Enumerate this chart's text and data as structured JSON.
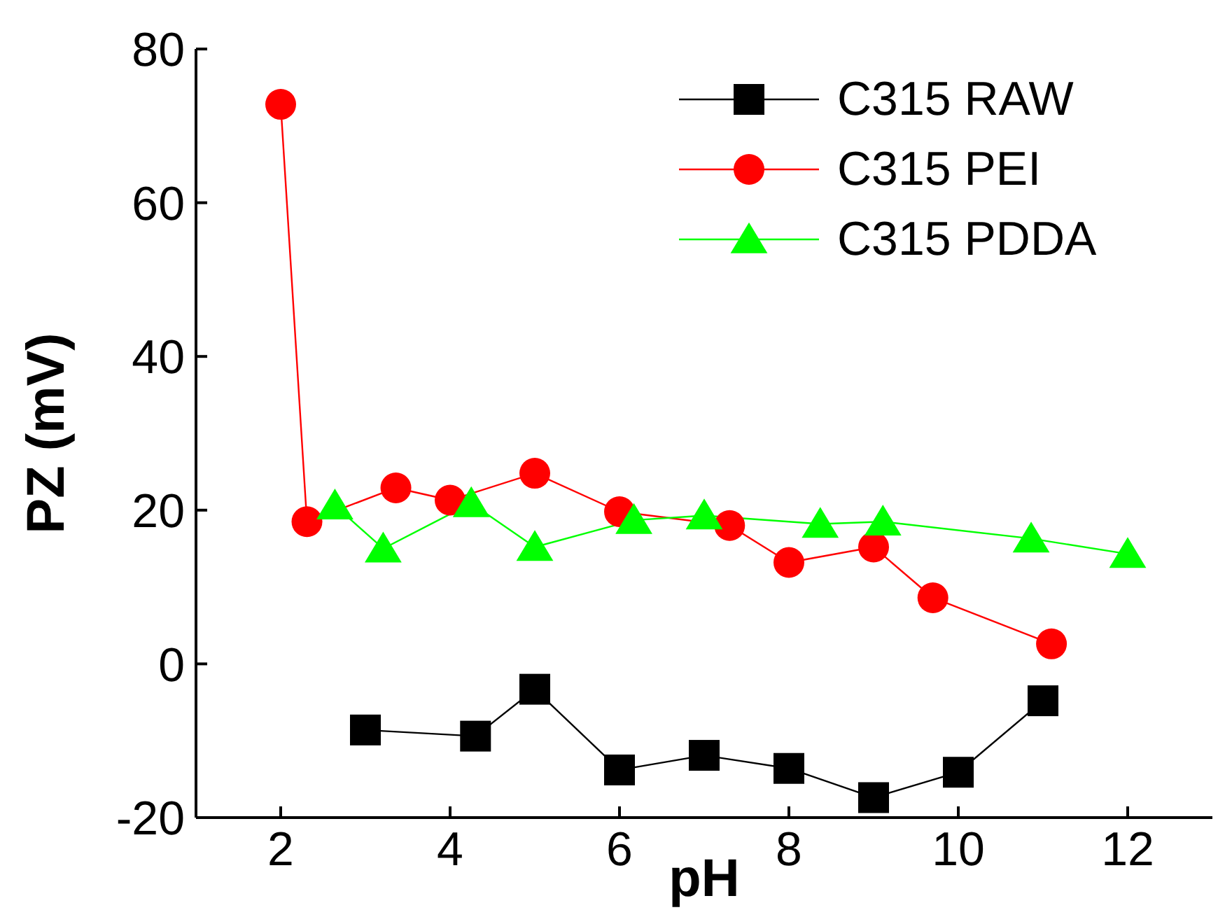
{
  "chart_data": {
    "type": "line",
    "xlabel": "pH",
    "ylabel": "PZ (mV)",
    "xlim": [
      1,
      13
    ],
    "xticks": [
      2,
      4,
      6,
      8,
      10,
      12
    ],
    "ylim": [
      -20,
      80
    ],
    "yticks": [
      -20,
      0,
      20,
      40,
      60,
      80
    ],
    "legend": "top right",
    "series": [
      {
        "name": "C315 RAW",
        "color": "#000000",
        "marker": "square",
        "x": [
          3,
          4.3,
          5,
          6,
          7,
          8,
          9,
          10,
          11
        ],
        "values": [
          -8.6,
          -9.4,
          -3.3,
          -13.8,
          -11.9,
          -13.6,
          -17.4,
          -14.1,
          -4.8
        ]
      },
      {
        "name": "C315 PEI",
        "color": "#ff0000",
        "marker": "circle",
        "x": [
          2,
          2.31,
          3.36,
          4,
          5,
          6,
          7.3,
          8,
          9,
          9.7,
          11.1
        ],
        "values": [
          72.8,
          18.5,
          22.9,
          21.3,
          24.8,
          19.8,
          18,
          13.2,
          15.2,
          8.6,
          2.6
        ]
      },
      {
        "name": "C315 PDDA",
        "color": "#00ff00",
        "marker": "triangle",
        "x": [
          2.64,
          3.21,
          4.25,
          5,
          6.17,
          7,
          8.37,
          9.11,
          10.86,
          12
        ],
        "values": [
          20.6,
          15,
          20.9,
          15.2,
          18.7,
          19.3,
          18.2,
          18.5,
          16.3,
          14.3
        ]
      }
    ]
  }
}
